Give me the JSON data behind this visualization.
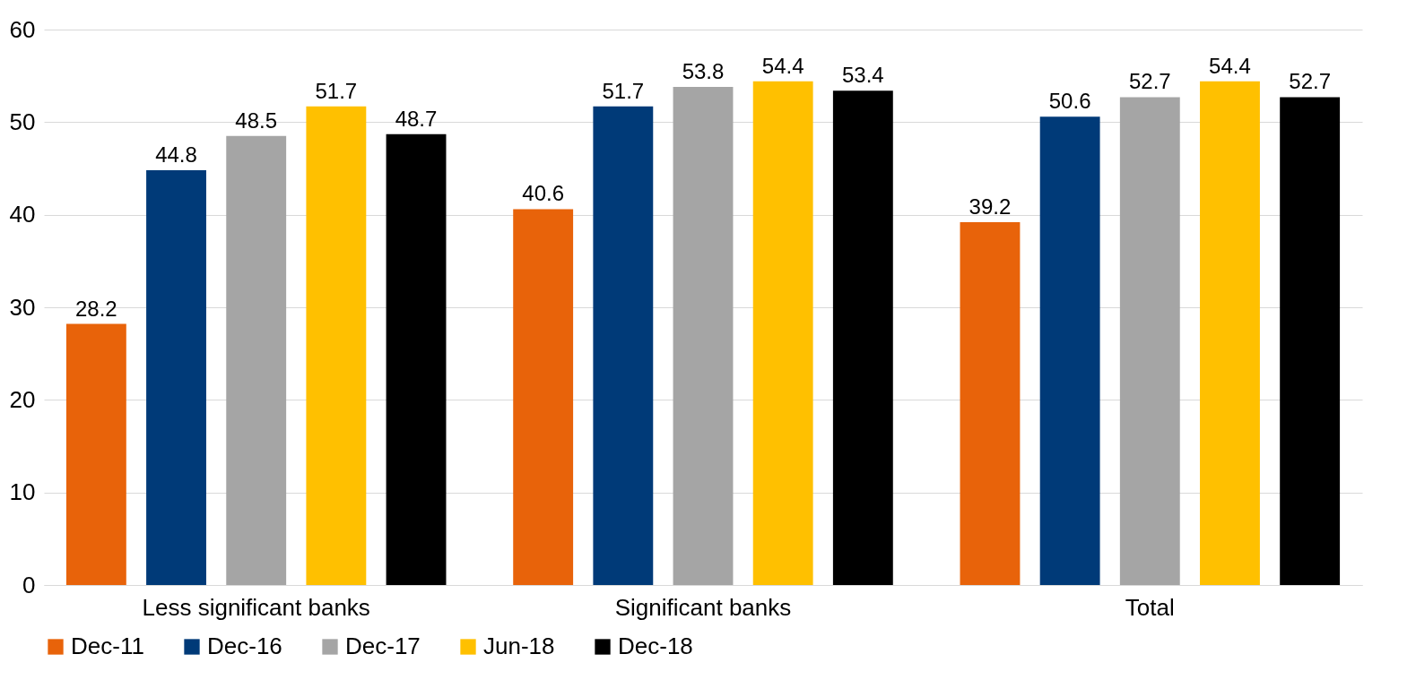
{
  "chart_data": {
    "type": "bar",
    "categories": [
      "Less significant banks",
      "Significant banks",
      "Total"
    ],
    "series": [
      {
        "name": "Dec-11",
        "color": "#e8630a",
        "values": [
          28.2,
          40.6,
          39.2
        ]
      },
      {
        "name": "Dec-16",
        "color": "#003a78",
        "values": [
          44.8,
          51.7,
          50.6
        ]
      },
      {
        "name": "Dec-17",
        "color": "#a5a5a5",
        "values": [
          48.5,
          53.8,
          52.7
        ]
      },
      {
        "name": "Jun-18",
        "color": "#ffc000",
        "values": [
          51.7,
          54.4,
          54.4
        ]
      },
      {
        "name": "Dec-18",
        "color": "#000000",
        "values": [
          48.7,
          53.4,
          52.7
        ]
      }
    ],
    "ylim": [
      0,
      60
    ],
    "yticks": [
      0,
      10,
      20,
      30,
      40,
      50,
      60
    ],
    "grid": "y",
    "legend": "bottom",
    "data_labels": true
  }
}
